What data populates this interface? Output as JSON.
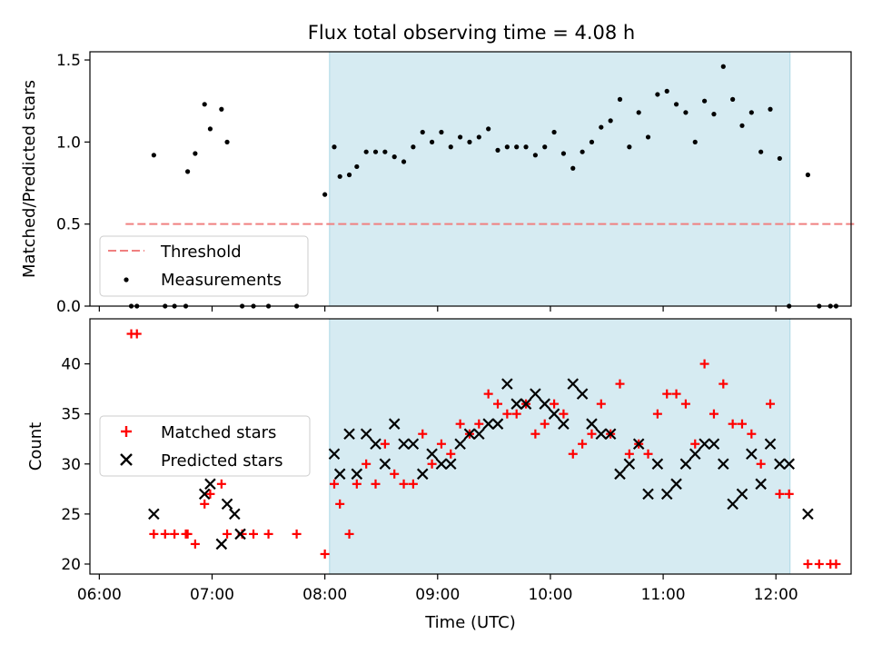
{
  "title": "Flux total observing time = 4.08 h",
  "colors": {
    "threshold": "#f08080",
    "measurement": "#000000",
    "matched": "#ff0000",
    "predicted": "#000000",
    "shade": "#add8e6"
  },
  "chart_data": [
    {
      "type": "scatter",
      "name": "ratio-panel",
      "ylabel": "Matched/Predicted stars",
      "xlim": [
        355,
        760
      ],
      "ylim": [
        0,
        1.55
      ],
      "yticks": [
        0.0,
        0.5,
        1.0,
        1.5
      ],
      "ytick_labels": [
        "0.0",
        "0.5",
        "1.0",
        "1.5"
      ],
      "shaded_region": [
        482.5,
        727.5
      ],
      "threshold": {
        "name": "Threshold",
        "y": 0.5,
        "x": [
          374,
          762
        ]
      },
      "legend": {
        "placement": "lower-left",
        "entries": [
          "Threshold",
          "Measurements"
        ]
      },
      "series": [
        {
          "name": "Measurements",
          "x": [
            377,
            380,
            389,
            395,
            400,
            406,
            407,
            411,
            416,
            419,
            425,
            428,
            436,
            442,
            450,
            465,
            480,
            485,
            488,
            493,
            497,
            502,
            507,
            512,
            517,
            522,
            527,
            532,
            537,
            542,
            547,
            552,
            557,
            562,
            567,
            572,
            577,
            582,
            587,
            592,
            597,
            602,
            607,
            612,
            617,
            622,
            627,
            632,
            637,
            642,
            647,
            652,
            657,
            662,
            667,
            672,
            677,
            682,
            687,
            692,
            697,
            702,
            707,
            712,
            717,
            722,
            727,
            737,
            743,
            749,
            752
          ],
          "y": [
            0,
            0,
            0.92,
            0,
            0,
            0,
            0.82,
            0.93,
            1.23,
            1.08,
            1.2,
            1.0,
            0,
            0,
            0,
            0,
            0.68,
            0.97,
            0.79,
            0.8,
            0.85,
            0.94,
            0.94,
            0.94,
            0.91,
            0.88,
            0.97,
            1.06,
            1.0,
            1.06,
            0.97,
            1.03,
            1.0,
            1.03,
            1.08,
            0.95,
            0.97,
            0.97,
            0.97,
            0.92,
            0.97,
            1.06,
            0.93,
            0.84,
            0.94,
            1.0,
            1.09,
            1.13,
            1.26,
            0.97,
            1.18,
            1.03,
            1.29,
            1.31,
            1.23,
            1.18,
            1.0,
            1.25,
            1.17,
            1.46,
            1.26,
            1.1,
            1.18,
            0.94,
            1.2,
            0.9,
            0,
            0.8,
            0,
            0,
            0
          ]
        }
      ]
    },
    {
      "type": "scatter",
      "name": "count-panel",
      "ylabel": "Count",
      "xlabel": "Time (UTC)",
      "xlim": [
        355,
        760
      ],
      "ylim": [
        19,
        44.5
      ],
      "yticks": [
        20,
        25,
        30,
        35,
        40
      ],
      "ytick_labels": [
        "20",
        "25",
        "30",
        "35",
        "40"
      ],
      "xticks": [
        360,
        420,
        480,
        540,
        600,
        660,
        720
      ],
      "xtick_labels": [
        "06:00",
        "07:00",
        "08:00",
        "09:00",
        "10:00",
        "11:00",
        "12:00"
      ],
      "shaded_region": [
        482.5,
        727.5
      ],
      "legend": {
        "placement": "center-left",
        "entries": [
          "Matched stars",
          "Predicted stars"
        ]
      },
      "series": [
        {
          "name": "Matched stars",
          "marker": "plus",
          "x": [
            377,
            380,
            389,
            395,
            400,
            406,
            407,
            411,
            416,
            419,
            425,
            428,
            436,
            442,
            450,
            465,
            480,
            485,
            488,
            493,
            497,
            502,
            507,
            512,
            517,
            522,
            527,
            532,
            537,
            542,
            547,
            552,
            557,
            562,
            567,
            572,
            577,
            582,
            587,
            592,
            597,
            602,
            607,
            612,
            617,
            622,
            627,
            632,
            637,
            642,
            647,
            652,
            657,
            662,
            667,
            672,
            677,
            682,
            687,
            692,
            697,
            702,
            707,
            712,
            717,
            722,
            727,
            737,
            743,
            749,
            752
          ],
          "y": [
            43,
            43,
            23,
            23,
            23,
            23,
            23,
            22,
            26,
            27,
            28,
            23,
            23,
            23,
            23,
            23,
            21,
            28,
            26,
            23,
            28,
            30,
            28,
            32,
            29,
            28,
            28,
            33,
            30,
            32,
            31,
            34,
            33,
            34,
            37,
            36,
            35,
            35,
            36,
            33,
            34,
            36,
            35,
            31,
            32,
            33,
            36,
            33,
            38,
            31,
            32,
            31,
            35,
            37,
            37,
            36,
            32,
            40,
            35,
            38,
            34,
            34,
            33,
            30,
            36,
            27,
            27,
            20,
            20,
            20,
            20
          ]
        },
        {
          "name": "Predicted stars",
          "marker": "x",
          "x": [
            389,
            416,
            419,
            425,
            428,
            432,
            435,
            485,
            488,
            493,
            497,
            502,
            507,
            512,
            517,
            522,
            527,
            532,
            537,
            542,
            547,
            552,
            557,
            562,
            567,
            572,
            577,
            582,
            587,
            592,
            597,
            602,
            607,
            612,
            617,
            622,
            627,
            632,
            637,
            642,
            647,
            652,
            657,
            662,
            667,
            672,
            677,
            682,
            687,
            692,
            697,
            702,
            707,
            712,
            717,
            722,
            727,
            737
          ],
          "y": [
            25,
            27,
            28,
            22,
            26,
            25,
            23,
            31,
            29,
            33,
            29,
            33,
            32,
            30,
            34,
            32,
            32,
            29,
            31,
            30,
            30,
            32,
            33,
            33,
            34,
            34,
            38,
            36,
            36,
            37,
            36,
            35,
            34,
            38,
            37,
            34,
            33,
            33,
            29,
            30,
            32,
            27,
            30,
            27,
            28,
            30,
            31,
            32,
            32,
            30,
            26,
            27,
            31,
            28,
            32,
            30,
            30,
            25
          ]
        }
      ]
    }
  ]
}
